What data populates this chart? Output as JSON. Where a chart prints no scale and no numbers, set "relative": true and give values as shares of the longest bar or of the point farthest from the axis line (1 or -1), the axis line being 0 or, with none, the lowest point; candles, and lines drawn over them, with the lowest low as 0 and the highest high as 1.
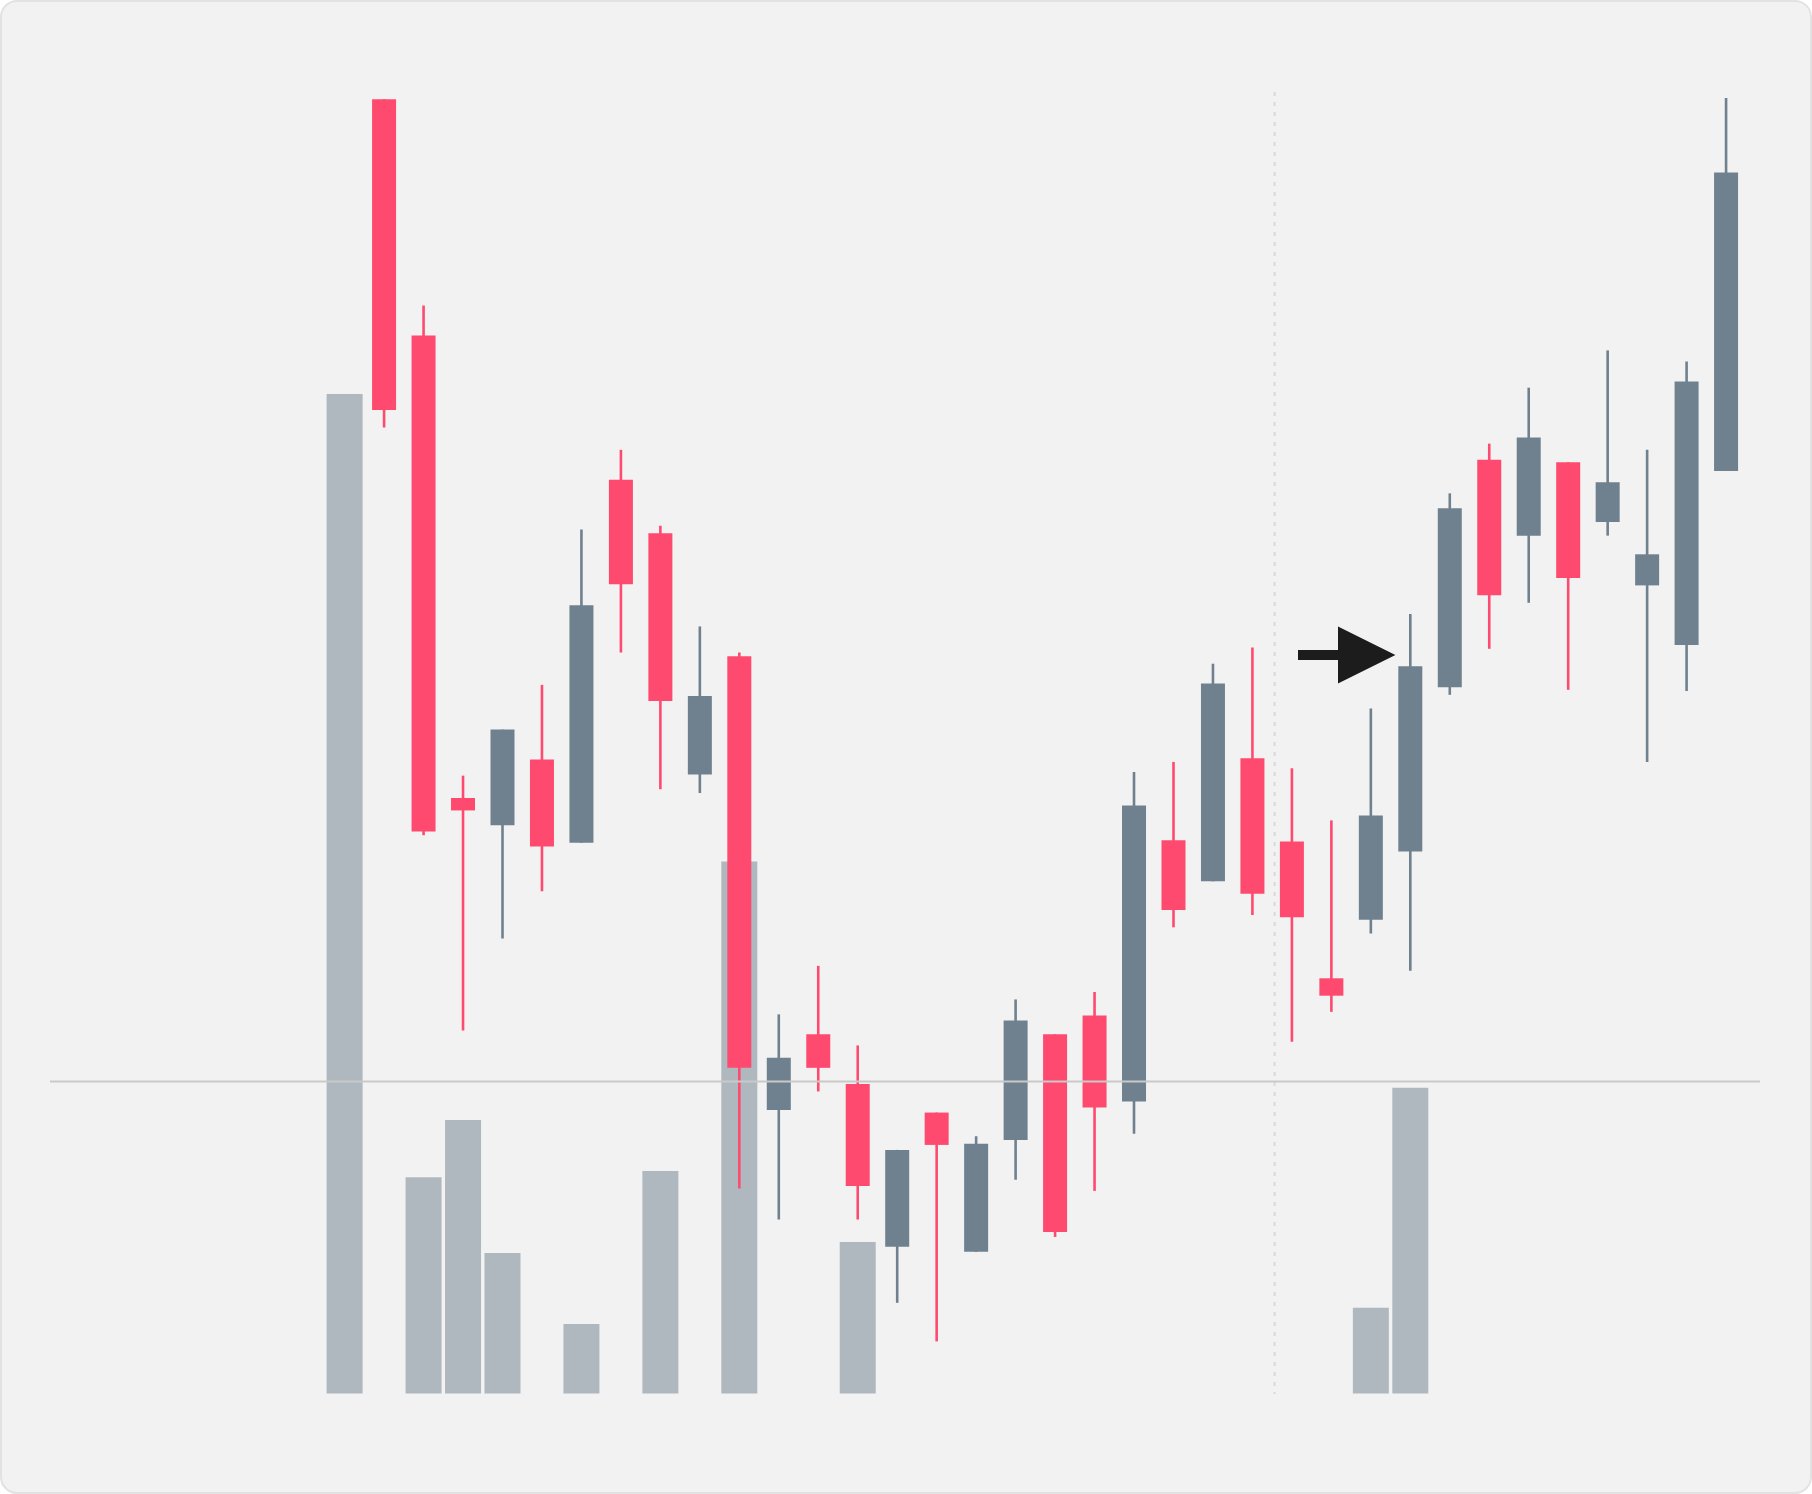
{
  "chart_data": {
    "type": "candlestick",
    "relative": true,
    "categories": [
      null,
      null,
      null,
      null,
      null,
      null,
      null,
      null,
      null,
      null,
      null,
      null,
      null,
      null,
      null,
      null,
      null,
      null,
      null,
      null,
      null,
      null,
      null,
      null,
      null,
      null,
      null,
      null,
      null,
      null,
      null,
      null,
      null,
      null,
      null,
      null
    ],
    "colors": [
      null,
      "#ff4a6f",
      "#ff4a6f",
      "#ff4a6f",
      "#6f818e",
      "#ff4a6f",
      "#6f818e",
      "#ff4a6f",
      "#ff4a6f",
      "#6f818e",
      "#ff4a6f",
      "#6f818e",
      "#ff4a6f",
      "#ff4a6f",
      "#6f818e",
      "#ff4a6f",
      "#6f818e",
      "#6f818e",
      "#ff4a6f",
      "#ff4a6f",
      "#6f818e",
      "#ff4a6f",
      "#6f818e",
      "#ff4a6f",
      "#ff4a6f",
      "#ff4a6f",
      "#6f818e",
      "#6f818e",
      "#6f818e",
      "#ff4a6f",
      "#6f818e",
      "#ff4a6f",
      "#6f818e",
      "#6f818e",
      "#6f818e",
      "#6f818e"
    ],
    "ohlc": [
      null,
      [
        0.999,
        0.999,
        0.735,
        0.749
      ],
      [
        0.809,
        0.833,
        0.407,
        0.41
      ],
      [
        0.437,
        0.455,
        0.25,
        0.427
      ],
      [
        0.415,
        0.492,
        0.324,
        0.492
      ],
      [
        0.468,
        0.528,
        0.362,
        0.398
      ],
      [
        0.401,
        0.653,
        0.401,
        0.592
      ],
      [
        0.693,
        0.717,
        0.554,
        0.609
      ],
      [
        0.65,
        0.656,
        0.444,
        0.515
      ],
      [
        0.456,
        0.575,
        0.441,
        0.519
      ],
      [
        0.551,
        0.554,
        0.123,
        0.22
      ],
      [
        0.186,
        0.263,
        0.098,
        0.228
      ],
      [
        0.247,
        0.302,
        0.201,
        0.22
      ],
      [
        0.207,
        0.238,
        0.098,
        0.125
      ],
      [
        0.076,
        0.154,
        0.031,
        0.154
      ],
      [
        0.184,
        0.184,
        0,
        0.158
      ],
      [
        0.072,
        0.165,
        0.072,
        0.159
      ],
      [
        0.162,
        0.275,
        0.13,
        0.258
      ],
      [
        0.247,
        0.247,
        0.084,
        0.088
      ],
      [
        0.262,
        0.281,
        0.121,
        0.188
      ],
      [
        0.193,
        0.458,
        0.167,
        0.431
      ],
      [
        0.403,
        0.466,
        0.333,
        0.347
      ],
      [
        0.37,
        0.545,
        0.37,
        0.529
      ],
      [
        0.469,
        0.558,
        0.343,
        0.36
      ],
      [
        0.402,
        0.461,
        0.241,
        0.341
      ],
      [
        0.292,
        0.419,
        0.265,
        0.278
      ],
      [
        0.339,
        0.509,
        0.328,
        0.423
      ],
      [
        0.394,
        0.585,
        0.298,
        0.543
      ],
      [
        0.526,
        0.682,
        0.52,
        0.67
      ],
      [
        0.709,
        0.722,
        0.557,
        0.6
      ],
      [
        0.648,
        0.767,
        0.594,
        0.727
      ],
      [
        0.707,
        0.707,
        0.524,
        0.614
      ],
      [
        0.659,
        0.797,
        0.648,
        0.691
      ],
      [
        0.608,
        0.717,
        0.466,
        0.633
      ],
      [
        0.56,
        0.788,
        0.523,
        0.772
      ],
      [
        0.7,
        1.0,
        0.7,
        0.94
      ]
    ],
    "series": [
      {
        "type": "bar",
        "color": "#b0b8bf",
        "base": [
          -0.042,
          null,
          -0.042,
          -0.042,
          -0.042,
          null,
          -0.042,
          null,
          -0.042,
          null,
          -0.042,
          null,
          null,
          -0.042,
          null,
          null,
          null,
          null,
          null,
          null,
          null,
          null,
          null,
          null,
          null,
          null,
          -0.042,
          -0.042,
          null,
          null,
          null,
          null,
          null,
          null,
          null,
          null
        ],
        "values": [
          0.804,
          null,
          0.174,
          0.22,
          0.113,
          null,
          0.056,
          null,
          0.179,
          null,
          0.428,
          null,
          null,
          0.122,
          null,
          null,
          null,
          null,
          null,
          null,
          null,
          null,
          null,
          null,
          null,
          null,
          0.069,
          0.246,
          null,
          null,
          null,
          null,
          null,
          null,
          null,
          null
        ]
      }
    ],
    "ref_lines": [
      {
        "axis": "y",
        "value": 0.209,
        "color": "#c9c9c9"
      }
    ]
  }
}
